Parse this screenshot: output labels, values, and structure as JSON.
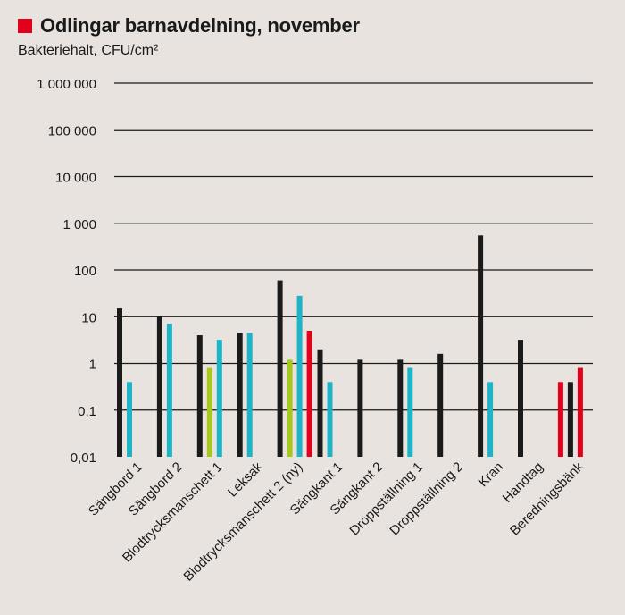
{
  "colors": {
    "background": "#e8e3df",
    "accent": "#e2001a",
    "Svart": "#1a1a1a",
    "Cyan": "#1eb4c8",
    "Gul": "#a8c81e",
    "Röd": "#e2001a"
  },
  "chart_data": {
    "type": "bar",
    "title": "Odlingar barnavdelning, november",
    "ylabel": "Bakteriehalt, CFU/cm²",
    "xlabel": "",
    "yscale": "log",
    "ylim": [
      0.01,
      1000000
    ],
    "yticks": [
      {
        "value": 1000000,
        "label": "1 000 000"
      },
      {
        "value": 100000,
        "label": "100 000"
      },
      {
        "value": 10000,
        "label": "10 000"
      },
      {
        "value": 1000,
        "label": "1 000"
      },
      {
        "value": 100,
        "label": "100"
      },
      {
        "value": 10,
        "label": "10"
      },
      {
        "value": 1,
        "label": "1"
      },
      {
        "value": 0.1,
        "label": "0,1"
      },
      {
        "value": 0.01,
        "label": "0,01"
      }
    ],
    "categories": [
      {
        "label": "Sängbord 1",
        "bars": [
          {
            "color": "Svart",
            "value": 15
          },
          {
            "color": "Cyan",
            "value": 0.4
          }
        ]
      },
      {
        "label": "Sängbord 2",
        "bars": [
          {
            "color": "Svart",
            "value": 10
          },
          {
            "color": "Cyan",
            "value": 7
          }
        ]
      },
      {
        "label": "Blodtrycksmanschett 1",
        "bars": [
          {
            "color": "Svart",
            "value": 4
          },
          {
            "color": "Gul",
            "value": 0.8
          },
          {
            "color": "Cyan",
            "value": 3.2
          }
        ]
      },
      {
        "label": "Leksak",
        "bars": [
          {
            "color": "Svart",
            "value": 4.5
          },
          {
            "color": "Cyan",
            "value": 4.5
          }
        ]
      },
      {
        "label": "Blodtrycksmanschett 2 (ny)",
        "bars": [
          {
            "color": "Svart",
            "value": 60
          },
          {
            "color": "Gul",
            "value": 1.2
          },
          {
            "color": "Cyan",
            "value": 28
          },
          {
            "color": "Röd",
            "value": 5
          }
        ]
      },
      {
        "label": "Sängkant 1",
        "bars": [
          {
            "color": "Svart",
            "value": 2
          },
          {
            "color": "Cyan",
            "value": 0.4
          }
        ]
      },
      {
        "label": "Sängkant 2",
        "bars": [
          {
            "color": "Svart",
            "value": 1.2
          }
        ]
      },
      {
        "label": "Droppställning 1",
        "bars": [
          {
            "color": "Svart",
            "value": 1.2
          },
          {
            "color": "Cyan",
            "value": 0.8
          }
        ]
      },
      {
        "label": "Droppställning 2",
        "bars": [
          {
            "color": "Svart",
            "value": 1.6
          }
        ]
      },
      {
        "label": "Kran",
        "bars": [
          {
            "color": "Svart",
            "value": 550
          },
          {
            "color": "Cyan",
            "value": 0.4
          }
        ]
      },
      {
        "label": "Handtag",
        "bars": [
          {
            "color": "Svart",
            "value": 3.2
          }
        ]
      },
      {
        "label": "Beredningsbänk",
        "bars": [
          {
            "color": "Röd",
            "value": 0.4
          },
          {
            "color": "Svart",
            "value": 0.4
          },
          {
            "color": "Röd",
            "value": 0.8
          }
        ]
      }
    ]
  }
}
